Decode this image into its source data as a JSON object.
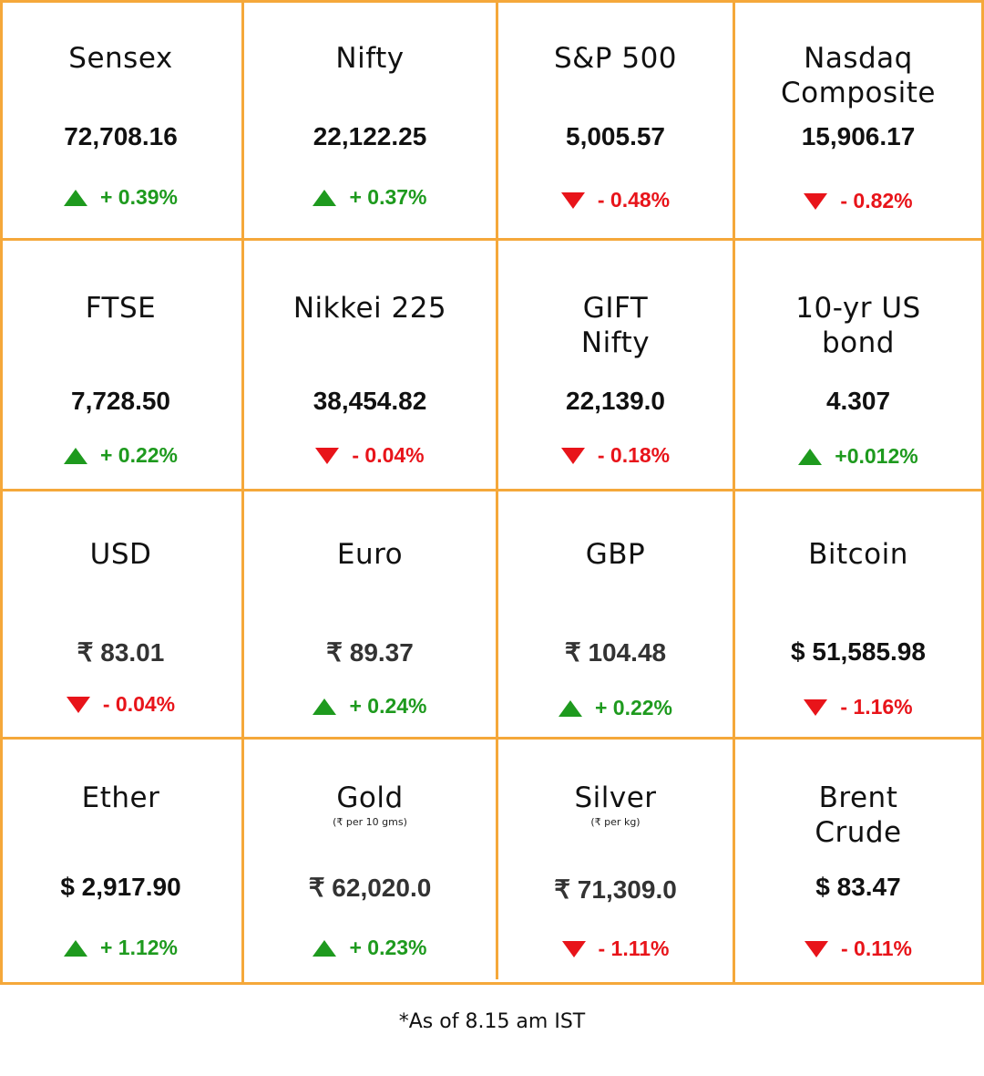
{
  "colors": {
    "border": "#F5A83A",
    "up": "#1E9A1E",
    "down": "#E8141A"
  },
  "rows": [
    [
      {
        "name": "Sensex",
        "value": "72,708.16",
        "direction": "up",
        "change": "+ 0.39%"
      },
      {
        "name": "Nifty",
        "value": "22,122.25",
        "direction": "up",
        "change": "+ 0.37%"
      },
      {
        "name": "S&P 500",
        "value": "5,005.57",
        "direction": "down",
        "change": "- 0.48%"
      },
      {
        "name": "Nasdaq Composite",
        "value": "15,906.17",
        "direction": "down",
        "change": "- 0.82%"
      }
    ],
    [
      {
        "name": "FTSE",
        "value": "7,728.50",
        "direction": "up",
        "change": "+ 0.22%"
      },
      {
        "name": "Nikkei 225",
        "value": "38,454.82",
        "direction": "down",
        "change": "- 0.04%"
      },
      {
        "name": "GIFT Nifty",
        "value": "22,139.0",
        "direction": "down",
        "change": "- 0.18%"
      },
      {
        "name": "10-yr US bond",
        "value": "4.307",
        "direction": "up",
        "change": "+0.012%"
      }
    ],
    [
      {
        "name": "USD",
        "value": "₹ 83.01",
        "direction": "down",
        "change": "- 0.04%"
      },
      {
        "name": "Euro",
        "value": "₹ 89.37",
        "direction": "up",
        "change": "+ 0.24%"
      },
      {
        "name": "GBP",
        "value": "₹ 104.48",
        "direction": "up",
        "change": "+ 0.22%"
      },
      {
        "name": "Bitcoin",
        "value": "$ 51,585.98",
        "direction": "down",
        "change": "- 1.16%"
      }
    ],
    [
      {
        "name": "Ether",
        "value": "$ 2,917.90",
        "direction": "up",
        "change": "+ 1.12%"
      },
      {
        "name": "Gold",
        "sub": "(₹ per 10 gms)",
        "value": "₹ 62,020.0",
        "direction": "up",
        "change": "+ 0.23%"
      },
      {
        "name": "Silver",
        "sub": "(₹ per kg)",
        "value": "₹ 71,309.0",
        "direction": "down",
        "change": "- 1.11%"
      },
      {
        "name": "Brent Crude",
        "value": "$ 83.47",
        "direction": "down",
        "change": "- 0.11%"
      }
    ]
  ],
  "footnote": "*As of 8.15 am IST"
}
